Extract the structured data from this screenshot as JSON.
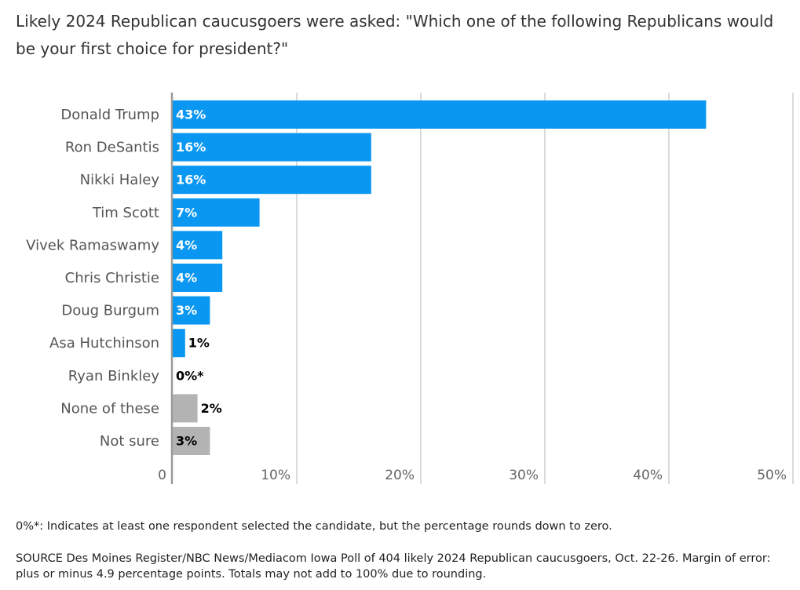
{
  "chart_data": {
    "type": "bar",
    "orientation": "horizontal",
    "title": "Likely 2024 Republican caucusgoers were asked: \"Which one of the following Republicans would be your first choice for president?\"",
    "categories": [
      "Donald Trump",
      "Ron DeSantis",
      "Nikki Haley",
      "Tim Scott",
      "Vivek Ramaswamy",
      "Chris Christie",
      "Doug Burgum",
      "Asa Hutchinson",
      "Ryan Binkley",
      "None of these",
      "Not sure"
    ],
    "values": [
      43,
      16,
      16,
      7,
      4,
      4,
      3,
      1,
      0,
      2,
      3
    ],
    "value_labels": [
      "43%",
      "16%",
      "16%",
      "7%",
      "4%",
      "4%",
      "3%",
      "1%",
      "0%*",
      "2%",
      "3%"
    ],
    "colors": [
      "#0a97f2",
      "#0a97f2",
      "#0a97f2",
      "#0a97f2",
      "#0a97f2",
      "#0a97f2",
      "#0a97f2",
      "#0a97f2",
      "#0a97f2",
      "#b3b3b3",
      "#b3b3b3"
    ],
    "xlim": [
      0,
      50
    ],
    "xticks": [
      0,
      {
        "value": 10,
        "label": "10%"
      },
      {
        "value": 20,
        "label": "20%"
      },
      {
        "value": 30,
        "label": "30%"
      },
      {
        "value": 40,
        "label": "40%"
      },
      {
        "value": 50,
        "label": "50%"
      }
    ],
    "grid": true,
    "note": "0%*: Indicates at least one respondent selected the candidate, but the percentage rounds down to zero.",
    "source": "SOURCE Des Moines Register/NBC News/Mediacom Iowa Poll of 404 likely 2024 Republican caucusgoers, Oct. 22-26. Margin of error: plus or minus 4.9 percentage points. Totals may not add to 100% due to rounding."
  }
}
